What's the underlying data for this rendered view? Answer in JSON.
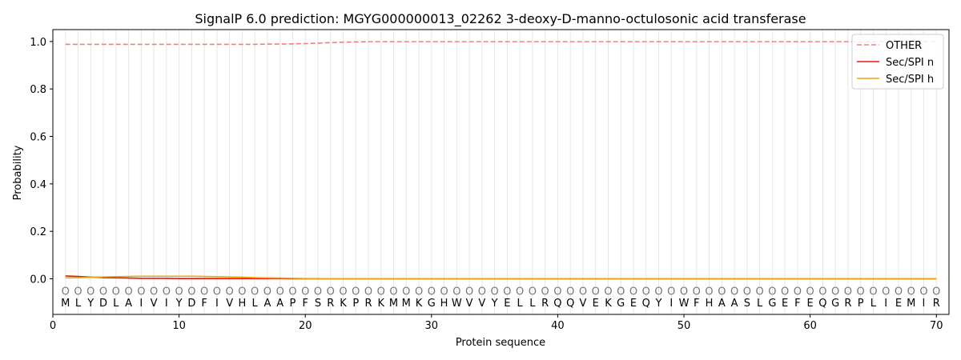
{
  "chart_data": {
    "type": "line",
    "title": "SignalP 6.0 prediction: MGYG000000013_02262 3-deoxy-D-manno-octulosonic acid transferase",
    "xlabel": "Protein sequence",
    "ylabel": "Probability",
    "xlim": [
      0,
      71
    ],
    "ylim": [
      -0.15,
      1.05
    ],
    "xticks": [
      0,
      10,
      20,
      30,
      40,
      50,
      60,
      70
    ],
    "yticks": [
      "0.0",
      "0.2",
      "0.4",
      "0.6",
      "0.8",
      "1.0"
    ],
    "legend_position": "top-right",
    "sequence": [
      "M",
      "L",
      "Y",
      "D",
      "L",
      "A",
      "I",
      "V",
      "I",
      "Y",
      "D",
      "F",
      "I",
      "V",
      "H",
      "L",
      "A",
      "A",
      "P",
      "F",
      "S",
      "R",
      "K",
      "P",
      "R",
      "K",
      "M",
      "M",
      "K",
      "G",
      "H",
      "W",
      "V",
      "V",
      "Y",
      "E",
      "L",
      "L",
      "R",
      "Q",
      "Q",
      "V",
      "E",
      "K",
      "G",
      "E",
      "Q",
      "Y",
      "I",
      "W",
      "F",
      "H",
      "A",
      "A",
      "S",
      "L",
      "G",
      "E",
      "F",
      "E",
      "Q",
      "G",
      "R",
      "P",
      "L",
      "I",
      "E",
      "M",
      "I",
      "R"
    ],
    "prediction_label": "O",
    "series": [
      {
        "name": "OTHER",
        "color": "#f08080",
        "style": "dashed",
        "values": [
          0.988,
          0.988,
          0.988,
          0.988,
          0.988,
          0.988,
          0.988,
          0.988,
          0.988,
          0.988,
          0.988,
          0.988,
          0.988,
          0.988,
          0.988,
          0.988,
          0.989,
          0.989,
          0.99,
          0.991,
          0.993,
          0.995,
          0.997,
          0.998,
          0.999,
          0.999,
          0.999,
          0.999,
          0.999,
          0.999,
          0.999,
          0.999,
          0.999,
          0.999,
          0.999,
          0.999,
          0.999,
          0.999,
          0.999,
          0.999,
          0.999,
          0.999,
          0.999,
          0.999,
          0.999,
          0.999,
          0.999,
          0.999,
          0.999,
          0.999,
          0.999,
          0.999,
          0.999,
          0.999,
          0.999,
          0.999,
          0.999,
          0.999,
          0.999,
          0.999,
          0.999,
          0.999,
          0.999,
          0.999,
          0.999,
          0.999,
          0.999,
          0.999,
          0.999,
          0.999
        ]
      },
      {
        "name": "Sec/SPI n",
        "color": "#e8180c",
        "style": "solid",
        "values": [
          0.012,
          0.01,
          0.007,
          0.005,
          0.004,
          0.003,
          0.002,
          0.002,
          0.002,
          0.001,
          0.001,
          0.001,
          0.001,
          0.001,
          0.001,
          0.001,
          0.001,
          0.001,
          0.0,
          0.0,
          0.0,
          0.0,
          0.0,
          0.0,
          0.0,
          0.0,
          0.0,
          0.0,
          0.0,
          0.0,
          0.0,
          0.0,
          0.0,
          0.0,
          0.0,
          0.0,
          0.0,
          0.0,
          0.0,
          0.0,
          0.0,
          0.0,
          0.0,
          0.0,
          0.0,
          0.0,
          0.0,
          0.0,
          0.0,
          0.0,
          0.0,
          0.0,
          0.0,
          0.0,
          0.0,
          0.0,
          0.0,
          0.0,
          0.0,
          0.0,
          0.0,
          0.0,
          0.0,
          0.0,
          0.0,
          0.0,
          0.0,
          0.0,
          0.0,
          0.0
        ]
      },
      {
        "name": "Sec/SPI h",
        "color": "#f0a30a",
        "style": "solid",
        "values": [
          0.004,
          0.005,
          0.006,
          0.008,
          0.009,
          0.01,
          0.011,
          0.011,
          0.011,
          0.011,
          0.011,
          0.01,
          0.009,
          0.008,
          0.007,
          0.005,
          0.004,
          0.003,
          0.002,
          0.001,
          0.001,
          0.0,
          0.0,
          0.0,
          0.0,
          0.0,
          0.0,
          0.0,
          0.0,
          0.0,
          0.0,
          0.0,
          0.0,
          0.0,
          0.0,
          0.0,
          0.0,
          0.0,
          0.0,
          0.0,
          0.0,
          0.0,
          0.0,
          0.0,
          0.0,
          0.0,
          0.0,
          0.0,
          0.0,
          0.0,
          0.0,
          0.0,
          0.0,
          0.0,
          0.0,
          0.0,
          0.0,
          0.0,
          0.0,
          0.0,
          0.0,
          0.0,
          0.0,
          0.0,
          0.0,
          0.0,
          0.0,
          0.0,
          0.0,
          0.0
        ]
      }
    ]
  }
}
